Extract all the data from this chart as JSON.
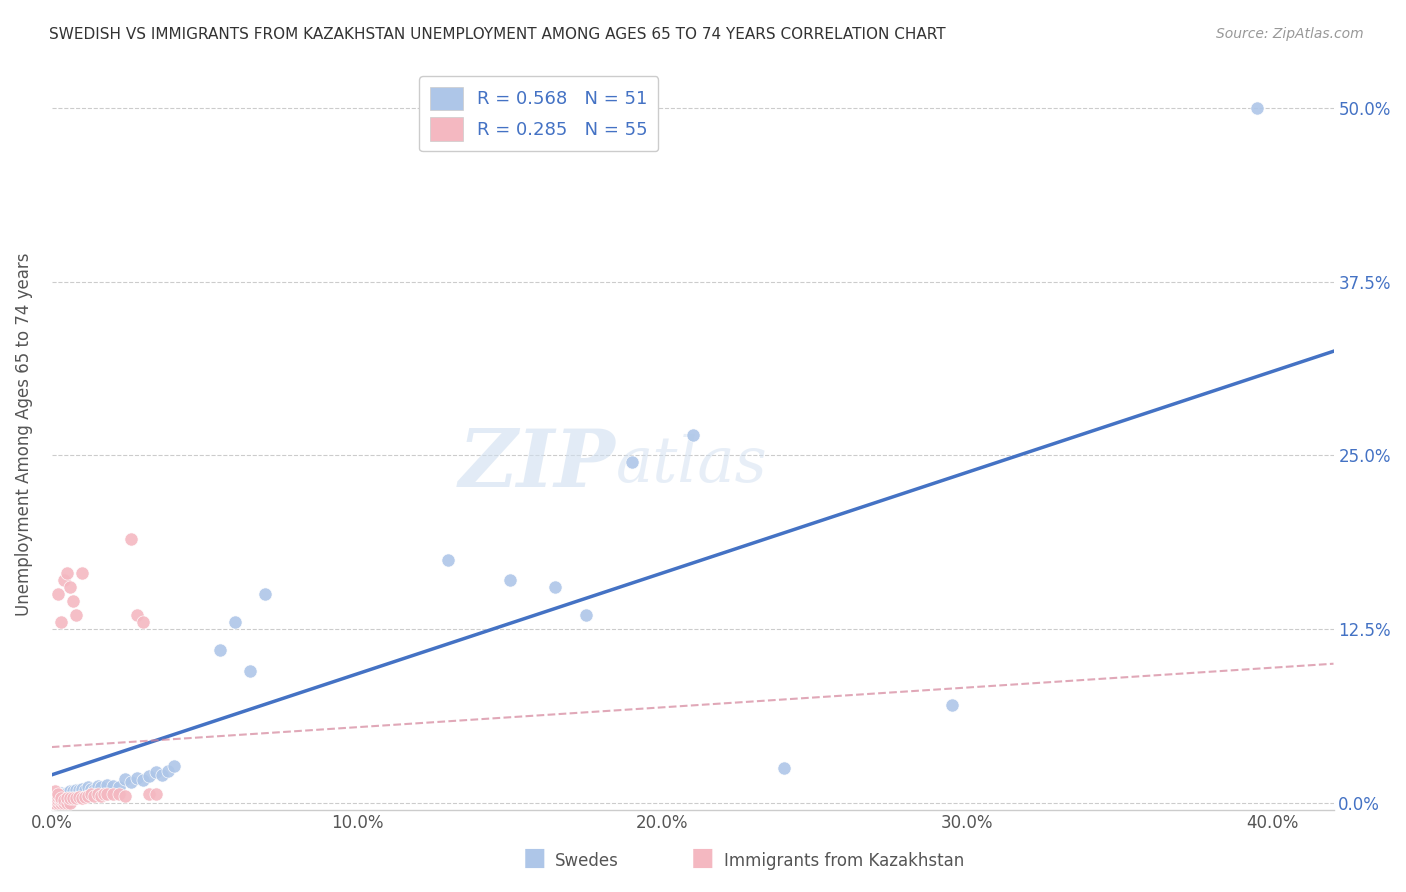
{
  "title": "SWEDISH VS IMMIGRANTS FROM KAZAKHSTAN UNEMPLOYMENT AMONG AGES 65 TO 74 YEARS CORRELATION CHART",
  "source": "Source: ZipAtlas.com",
  "ylabel": "Unemployment Among Ages 65 to 74 years",
  "xlabel_ticks": [
    "0.0%",
    "10.0%",
    "20.0%",
    "30.0%",
    "40.0%"
  ],
  "ylabel_ticks_right": [
    "50.0%",
    "37.5%",
    "25.0%",
    "12.5%",
    "0.0%"
  ],
  "xlim": [
    0,
    0.42
  ],
  "ylim": [
    -0.005,
    0.535
  ],
  "swedes_R": 0.568,
  "swedes_N": 51,
  "immigrants_R": 0.285,
  "immigrants_N": 55,
  "swedes_color": "#aec6e8",
  "immigrants_color": "#f4b8c1",
  "swedes_line_color": "#4472c4",
  "immigrants_line_color": "#d4849a",
  "legend_label_swedes": "Swedes",
  "legend_label_immigrants": "Immigrants from Kazakhstan",
  "watermark_zip": "ZIP",
  "watermark_atlas": "atlas",
  "swedes_x": [
    0.001,
    0.001,
    0.002,
    0.002,
    0.003,
    0.003,
    0.004,
    0.004,
    0.005,
    0.005,
    0.006,
    0.006,
    0.007,
    0.007,
    0.008,
    0.008,
    0.009,
    0.009,
    0.01,
    0.01,
    0.011,
    0.012,
    0.013,
    0.014,
    0.015,
    0.016,
    0.018,
    0.02,
    0.022,
    0.024,
    0.026,
    0.028,
    0.03,
    0.032,
    0.034,
    0.036,
    0.038,
    0.04,
    0.055,
    0.06,
    0.065,
    0.07,
    0.13,
    0.15,
    0.165,
    0.175,
    0.19,
    0.21,
    0.24,
    0.295,
    0.395
  ],
  "swedes_y": [
    0.005,
    0.003,
    0.006,
    0.004,
    0.007,
    0.005,
    0.004,
    0.006,
    0.005,
    0.007,
    0.006,
    0.008,
    0.005,
    0.008,
    0.006,
    0.009,
    0.007,
    0.009,
    0.008,
    0.01,
    0.009,
    0.011,
    0.01,
    0.009,
    0.012,
    0.011,
    0.013,
    0.012,
    0.011,
    0.017,
    0.015,
    0.018,
    0.016,
    0.019,
    0.022,
    0.02,
    0.023,
    0.026,
    0.11,
    0.13,
    0.095,
    0.15,
    0.175,
    0.16,
    0.155,
    0.135,
    0.245,
    0.265,
    0.025,
    0.07,
    0.5
  ],
  "immigrants_x": [
    0.0,
    0.0,
    0.0,
    0.0,
    0.0,
    0.0,
    0.0,
    0.0,
    0.001,
    0.001,
    0.001,
    0.001,
    0.001,
    0.001,
    0.002,
    0.002,
    0.002,
    0.002,
    0.002,
    0.003,
    0.003,
    0.003,
    0.003,
    0.004,
    0.004,
    0.004,
    0.005,
    0.005,
    0.005,
    0.006,
    0.006,
    0.006,
    0.007,
    0.007,
    0.008,
    0.008,
    0.009,
    0.01,
    0.01,
    0.011,
    0.012,
    0.013,
    0.014,
    0.015,
    0.016,
    0.017,
    0.018,
    0.02,
    0.022,
    0.024,
    0.026,
    0.028,
    0.03,
    0.032,
    0.034
  ],
  "immigrants_y": [
    0.0,
    0.0,
    0.0,
    0.0,
    0.0,
    0.0,
    0.002,
    0.004,
    0.0,
    0.0,
    0.002,
    0.003,
    0.005,
    0.008,
    0.0,
    0.002,
    0.004,
    0.006,
    0.15,
    0.0,
    0.002,
    0.003,
    0.13,
    0.0,
    0.002,
    0.16,
    0.0,
    0.003,
    0.165,
    0.0,
    0.003,
    0.155,
    0.003,
    0.145,
    0.003,
    0.135,
    0.004,
    0.003,
    0.165,
    0.004,
    0.005,
    0.006,
    0.005,
    0.006,
    0.005,
    0.006,
    0.006,
    0.006,
    0.006,
    0.005,
    0.19,
    0.135,
    0.13,
    0.006,
    0.006
  ],
  "blue_line_x": [
    0.0,
    0.42
  ],
  "blue_line_y": [
    0.02,
    0.325
  ],
  "pink_line_x": [
    0.0,
    0.42
  ],
  "pink_line_y": [
    0.04,
    0.1
  ]
}
